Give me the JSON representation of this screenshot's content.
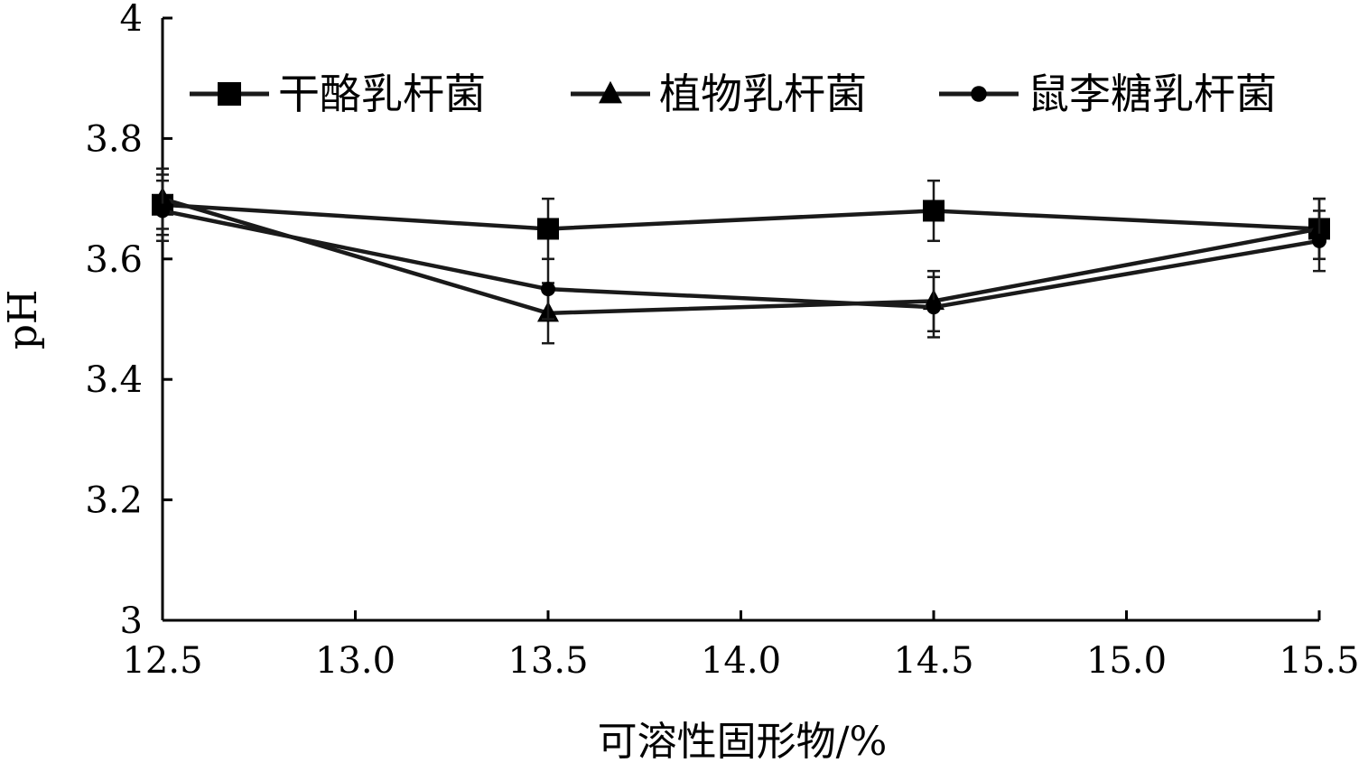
{
  "chart_data": {
    "type": "line",
    "title": "",
    "xlabel": "可溶性固形物/%",
    "ylabel": "pH",
    "x": [
      12.5,
      13.5,
      14.5,
      15.5
    ],
    "xlim": [
      12.5,
      15.5
    ],
    "ylim": [
      3.0,
      4.0
    ],
    "xticks": [
      12.5,
      13.0,
      13.5,
      14.0,
      14.5,
      15.0,
      15.5
    ],
    "xtick_labels": [
      "12.5",
      "13.0",
      "13.5",
      "14.0",
      "14.5",
      "15.0",
      "15.5"
    ],
    "yticks": [
      3.0,
      3.2,
      3.4,
      3.6,
      3.8,
      4.0
    ],
    "ytick_labels": [
      "3",
      "3.2",
      "3.4",
      "3.6",
      "3.8",
      "4"
    ],
    "grid": false,
    "legend_position": "top",
    "series": [
      {
        "name": "干酪乳杆菌",
        "marker": "square",
        "values": [
          3.69,
          3.65,
          3.68,
          3.65
        ],
        "errors": [
          0.05,
          0.05,
          0.05,
          0.05
        ]
      },
      {
        "name": "植物乳杆菌",
        "marker": "triangle",
        "values": [
          3.7,
          3.51,
          3.53,
          3.65
        ],
        "errors": [
          0.05,
          0.05,
          0.05,
          0.05
        ]
      },
      {
        "name": "鼠李糖乳杆菌",
        "marker": "circle",
        "values": [
          3.68,
          3.55,
          3.52,
          3.63
        ],
        "errors": [
          0.05,
          0.05,
          0.05,
          0.05
        ]
      }
    ],
    "colors": {
      "line": "#1a1a1a",
      "marker": "#000000",
      "axis": "#000000"
    }
  }
}
